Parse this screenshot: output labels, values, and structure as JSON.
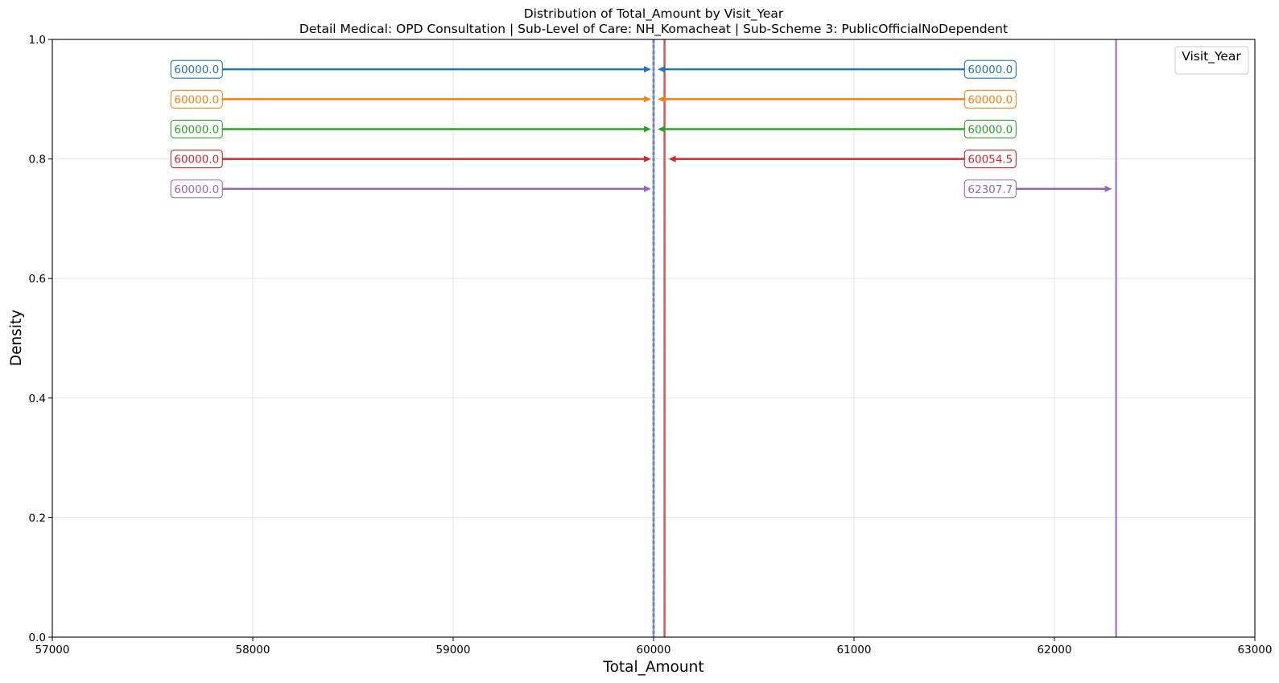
{
  "chart_data": {
    "type": "line",
    "title_line1": "Distribution of Total_Amount by Visit_Year",
    "title_line2": "Detail Medical: OPD Consultation | Sub-Level of Care: NH_Komacheat | Sub-Scheme 3: PublicOfficialNoDependent",
    "xlabel": "Total_Amount",
    "ylabel": "Density",
    "xlim": [
      57000,
      63000
    ],
    "ylim": [
      0.0,
      1.0
    ],
    "xticks": [
      "57000",
      "58000",
      "59000",
      "60000",
      "61000",
      "62000",
      "63000"
    ],
    "yticks": [
      "0.0",
      "0.2",
      "0.4",
      "0.6",
      "0.8",
      "1.0"
    ],
    "grid": true,
    "legend": {
      "title": "Visit_Year",
      "placement": "top-right"
    },
    "series": [
      {
        "color": "#1f77b4",
        "left_value": 60000.0,
        "right_value": 60000.0,
        "left_label": "60000.0",
        "right_label": "60000.0",
        "y": 0.95
      },
      {
        "color": "#ff7f0e",
        "left_value": 60000.0,
        "right_value": 60000.0,
        "left_label": "60000.0",
        "right_label": "60000.0",
        "y": 0.9
      },
      {
        "color": "#2ca02c",
        "left_value": 60000.0,
        "right_value": 60000.0,
        "left_label": "60000.0",
        "right_label": "60000.0",
        "y": 0.85
      },
      {
        "color": "#d62728",
        "left_value": 60000.0,
        "right_value": 60054.5,
        "left_label": "60000.0",
        "right_label": "60054.5",
        "y": 0.8
      },
      {
        "color": "#9467bd",
        "left_value": 60000.0,
        "right_value": 62307.7,
        "left_label": "60000.0",
        "right_label": "62307.7",
        "y": 0.75
      }
    ]
  }
}
